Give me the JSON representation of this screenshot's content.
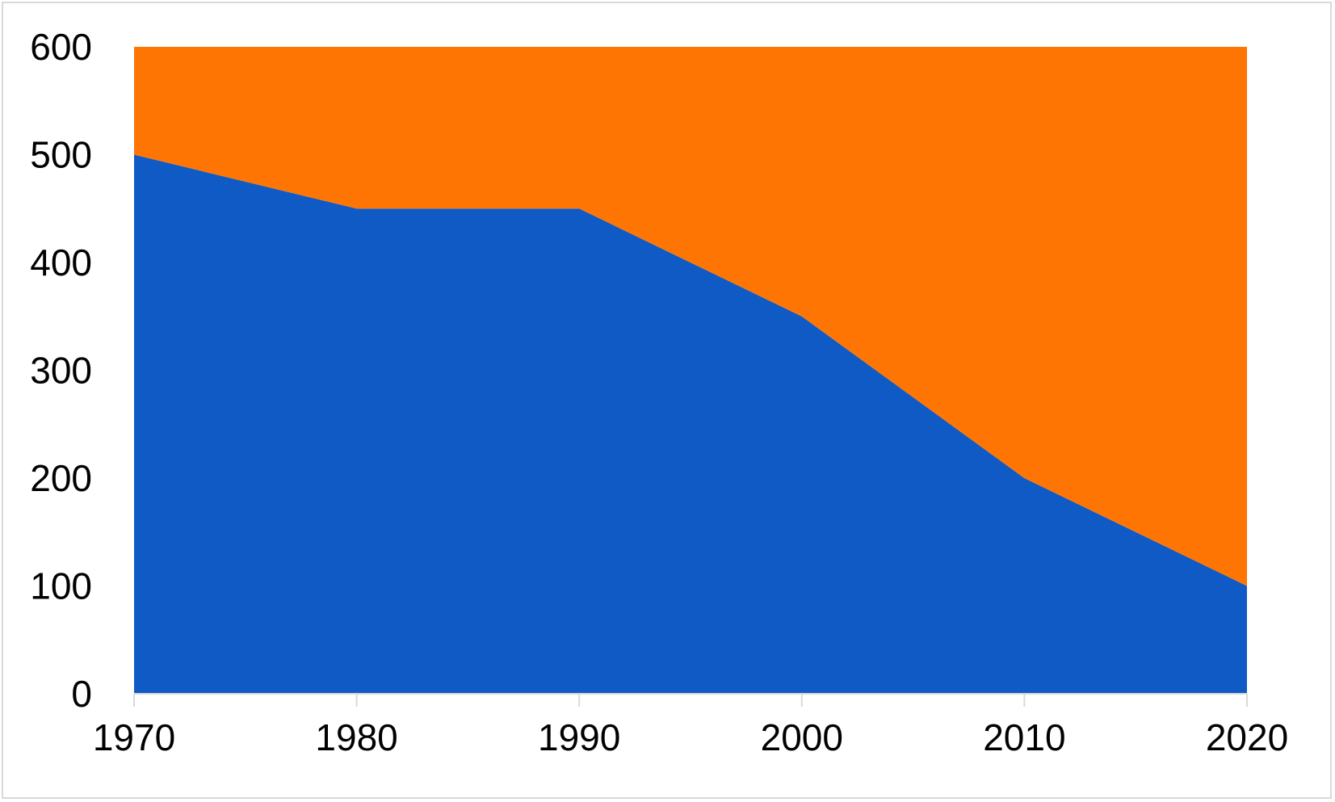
{
  "chart_data": {
    "type": "area",
    "stacked": true,
    "categories": [
      "1970",
      "1980",
      "1990",
      "2000",
      "2010",
      "2020"
    ],
    "series": [
      {
        "values": [
          500,
          450,
          450,
          350,
          200,
          100
        ],
        "color": "#0F5AC4"
      },
      {
        "values": [
          100,
          150,
          150,
          250,
          400,
          500
        ],
        "color": "#FF7504"
      }
    ],
    "yticks": [
      "0",
      "100",
      "200",
      "300",
      "400",
      "500",
      "600"
    ],
    "ylim": [
      0,
      600
    ],
    "grid": false,
    "legend": "none",
    "title": "",
    "xlabel": "",
    "ylabel": ""
  }
}
